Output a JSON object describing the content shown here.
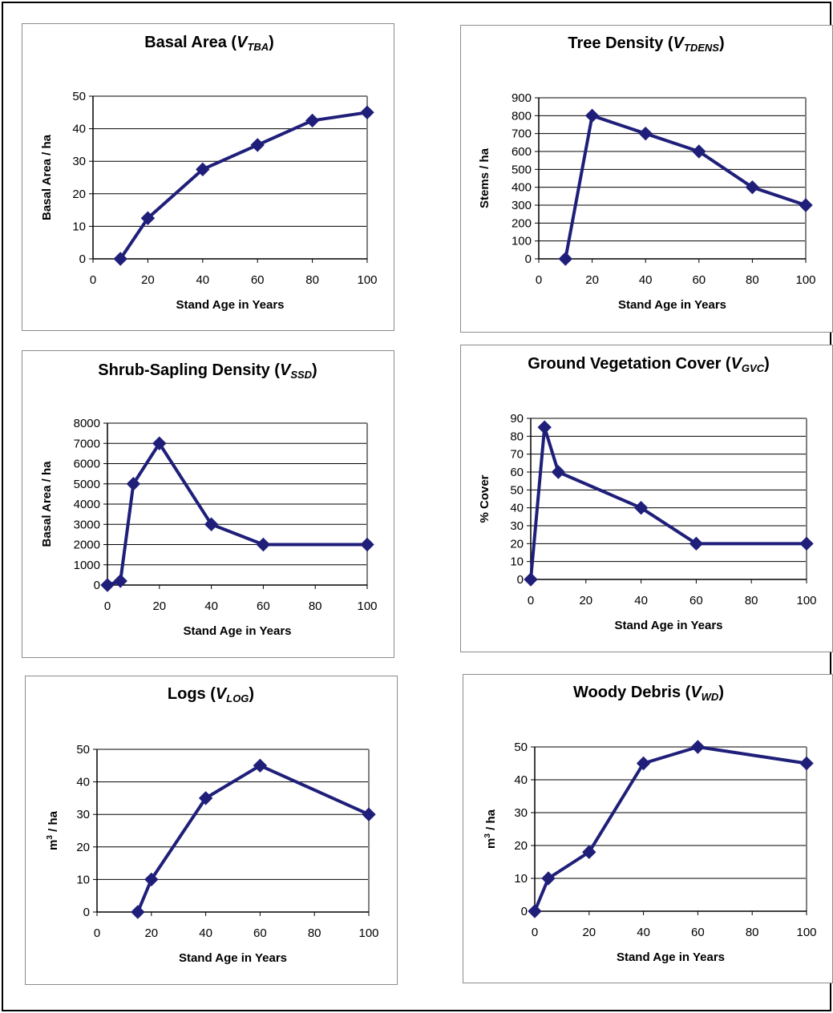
{
  "chart_data": [
    {
      "type": "line",
      "title": "Basal Area (VTBA)",
      "title_main": "Basal Area (",
      "title_var": "V",
      "title_sub": "TBA",
      "title_close": ")",
      "xlabel": "Stand Age in Years",
      "ylabel": "Basal Area / ha",
      "xlim": [
        0,
        100
      ],
      "ylim": [
        0,
        50
      ],
      "xticks": [
        0,
        20,
        40,
        60,
        80,
        100
      ],
      "yticks": [
        0,
        10,
        20,
        30,
        40,
        50
      ],
      "x": [
        10,
        20,
        40,
        60,
        80,
        100
      ],
      "y": [
        0,
        12.5,
        27.5,
        35,
        42.5,
        45
      ],
      "grid": true,
      "color": "#1f1f7a"
    },
    {
      "type": "line",
      "title": "Tree Density (VTDENS)",
      "title_main": "Tree Density (",
      "title_var": "V",
      "title_sub": "TDENS",
      "title_close": ")",
      "xlabel": "Stand Age in Years",
      "ylabel": "Stems / ha",
      "xlim": [
        0,
        100
      ],
      "ylim": [
        0,
        900
      ],
      "xticks": [
        0,
        20,
        40,
        60,
        80,
        100
      ],
      "yticks": [
        0,
        100,
        200,
        300,
        400,
        500,
        600,
        700,
        800,
        900
      ],
      "x": [
        10,
        20,
        40,
        60,
        80,
        100
      ],
      "y": [
        0,
        800,
        700,
        600,
        400,
        300
      ],
      "grid": true,
      "color": "#1f1f7a"
    },
    {
      "type": "line",
      "title": "Shrub-Sapling Density (VSSD)",
      "title_main": "Shrub-Sapling Density (",
      "title_var": "V",
      "title_sub": "SSD",
      "title_close": ")",
      "xlabel": "Stand Age in Years",
      "ylabel": "Basal Area / ha",
      "xlim": [
        0,
        100
      ],
      "ylim": [
        0,
        8000
      ],
      "xticks": [
        0,
        20,
        40,
        60,
        80,
        100
      ],
      "yticks": [
        0,
        1000,
        2000,
        3000,
        4000,
        5000,
        6000,
        7000,
        8000
      ],
      "x": [
        0,
        5,
        10,
        20,
        40,
        60,
        100
      ],
      "y": [
        0,
        200,
        5000,
        7000,
        3000,
        2000,
        2000
      ],
      "grid": true,
      "color": "#1f1f7a"
    },
    {
      "type": "line",
      "title": "Ground Vegetation Cover (VGVC)",
      "title_main": "Ground Vegetation Cover (",
      "title_var": "V",
      "title_sub": "GVC",
      "title_close": ")",
      "xlabel": "Stand Age in Years",
      "ylabel": "% Cover",
      "xlim": [
        0,
        100
      ],
      "ylim": [
        0,
        90
      ],
      "xticks": [
        0,
        20,
        40,
        60,
        80,
        100
      ],
      "yticks": [
        0,
        10,
        20,
        30,
        40,
        50,
        60,
        70,
        80,
        90
      ],
      "x": [
        0,
        5,
        10,
        40,
        60,
        100
      ],
      "y": [
        0,
        85,
        60,
        40,
        20,
        20
      ],
      "grid": true,
      "color": "#1f1f7a"
    },
    {
      "type": "line",
      "title": "Logs (VLOG)",
      "title_main": "Logs (",
      "title_var": "V",
      "title_sub": "LOG",
      "title_close": ")",
      "xlabel": "Stand Age in Years",
      "ylabel_main": "m",
      "ylabel_sup": "3",
      "ylabel_rest": " / ha",
      "xlim": [
        0,
        100
      ],
      "ylim": [
        0,
        50
      ],
      "xticks": [
        0,
        20,
        40,
        60,
        80,
        100
      ],
      "yticks": [
        0,
        10,
        20,
        30,
        40,
        50
      ],
      "x": [
        15,
        20,
        40,
        60,
        100
      ],
      "y": [
        0,
        10,
        35,
        45,
        30
      ],
      "grid": true,
      "color": "#1f1f7a"
    },
    {
      "type": "line",
      "title": "Woody Debris (VWD)",
      "title_main": "Woody Debris (",
      "title_var": "V",
      "title_sub": "WD",
      "title_close": ")",
      "xlabel": "Stand Age in Years",
      "ylabel_main": "m",
      "ylabel_sup": "3",
      "ylabel_rest": " / ha",
      "xlim": [
        0,
        100
      ],
      "ylim": [
        0,
        50
      ],
      "xticks": [
        0,
        20,
        40,
        60,
        80,
        100
      ],
      "yticks": [
        0,
        10,
        20,
        30,
        40,
        50
      ],
      "x": [
        0,
        5,
        20,
        40,
        60,
        100
      ],
      "y": [
        0,
        10,
        18,
        45,
        50,
        45
      ],
      "grid": true,
      "color": "#1f1f7a"
    }
  ]
}
